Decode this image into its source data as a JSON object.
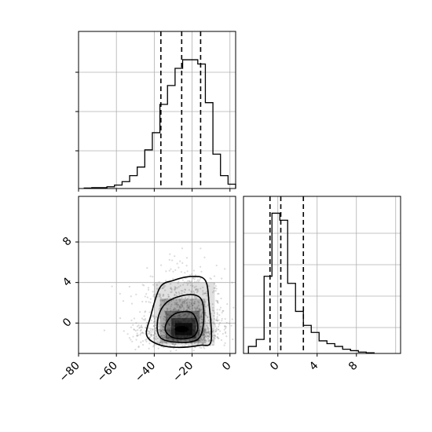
{
  "chart_data": [
    {
      "panel": "marginal-histogram-x",
      "type": "bar",
      "style": "step-histogram",
      "bin_edges": [
        -77,
        -73,
        -69,
        -65,
        -61,
        -57,
        -53,
        -49,
        -45,
        -41,
        -37,
        -33,
        -29,
        -25,
        -21,
        -17,
        -13,
        -9,
        -5,
        -1,
        3
      ],
      "values": [
        0.5,
        1,
        1,
        2,
        4,
        8,
        15,
        25,
        45,
        65,
        98,
        120,
        140,
        150,
        150,
        145,
        100,
        40,
        15,
        5
      ],
      "quantile_lines": [
        -36.5,
        -25.5,
        -15.5
      ],
      "xlim": [
        -80,
        3
      ],
      "grid": true,
      "tick_labels": false
    },
    {
      "panel": "marginal-histogram-y",
      "type": "bar",
      "style": "step-histogram",
      "bin_edges": [
        -3,
        -2.2,
        -1.4,
        -0.6,
        0.2,
        1.0,
        1.8,
        2.6,
        3.4,
        4.2,
        5.0,
        5.8,
        6.6,
        7.4,
        8.2,
        9.0,
        9.8
      ],
      "values": [
        5,
        10,
        55,
        100,
        95,
        50,
        30,
        20,
        15,
        9,
        7,
        5,
        3,
        2,
        1,
        0.5
      ],
      "quantile_lines": [
        -0.8,
        0.3,
        2.6
      ],
      "xlim": [
        -3.5,
        12.5
      ],
      "grid": true,
      "x_tick_labels": [
        "0",
        "4",
        "8"
      ],
      "x_tick_values": [
        0,
        4,
        8
      ]
    },
    {
      "panel": "joint-density",
      "type": "scatter",
      "style": "scatter-with-density-contours",
      "point_color": "#7f7f7f",
      "center": {
        "x": -25,
        "y": -0.6
      },
      "spread": {
        "x": 11,
        "y": 1.6
      },
      "xlim": [
        -80,
        3
      ],
      "ylim": [
        -3,
        12.5
      ],
      "contours": [
        {
          "level": 1,
          "points": [
            [
              -42,
              0.6
            ],
            [
              -37,
              3.5
            ],
            [
              -30,
              4.2
            ],
            [
              -20,
              4.6
            ],
            [
              -13,
              4.2
            ],
            [
              -11,
              1.8
            ],
            [
              -10,
              -1.8
            ],
            [
              -16,
              -2.2
            ],
            [
              -28,
              -2.4
            ],
            [
              -38,
              -2.1
            ],
            [
              -44,
              -1.2
            ]
          ]
        },
        {
          "level": 2,
          "points": [
            [
              -38,
              0.5
            ],
            [
              -33,
              2.1
            ],
            [
              -22,
              2.8
            ],
            [
              -15,
              2.3
            ],
            [
              -14,
              0
            ],
            [
              -17,
              -1.6
            ],
            [
              -27,
              -1.9
            ],
            [
              -37,
              -1.4
            ]
          ]
        },
        {
          "level": 3,
          "points": [
            [
              -33,
              0.2
            ],
            [
              -28,
              1.0
            ],
            [
              -20,
              1.0
            ],
            [
              -17,
              -0.4
            ],
            [
              -20,
              -1.4
            ],
            [
              -29,
              -1.5
            ],
            [
              -34,
              -0.8
            ]
          ]
        }
      ],
      "x_tick_labels": [
        "−80",
        "−60",
        "−40",
        "−20",
        "0"
      ],
      "x_tick_values": [
        -80,
        -60,
        -40,
        -20,
        0
      ],
      "y_tick_labels": [
        "0",
        "4",
        "8"
      ],
      "y_tick_values": [
        0,
        4,
        8
      ]
    }
  ],
  "colors": {
    "histogram_line": "#000000",
    "grid": "#b0b0b0",
    "scatter_points": "#7f7f7f",
    "contour_line": "#000000",
    "density_fill": "#000000"
  }
}
